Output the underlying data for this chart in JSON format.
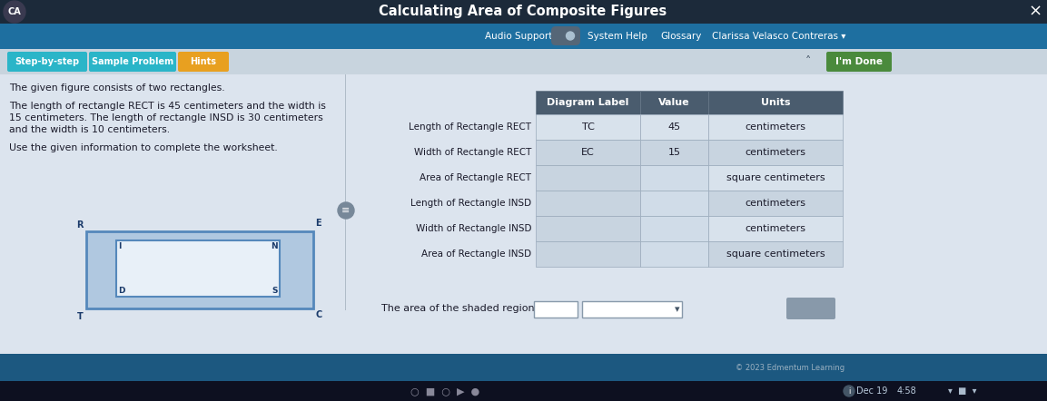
{
  "title": "Calculating Area of Composite Figures",
  "nav_items_right": [
    "Audio Support",
    "System Help",
    "Glossary",
    "Clarissa Velasco Contreras ▾"
  ],
  "tab_items": [
    "Step-by-step",
    "Sample Problem",
    "Hints"
  ],
  "tab_colors": [
    "#2ab5c8",
    "#2ab5c8",
    "#e8a020"
  ],
  "main_text_lines": [
    "The given figure consists of two rectangles.",
    "",
    "The length of rectangle RECT is 45 centimeters and the width is",
    "15 centimeters. The length of rectangle INSD is 30 centimeters",
    "and the width is 10 centimeters.",
    "",
    "Use the given information to complete the worksheet."
  ],
  "row_labels": [
    "Length of Rectangle RECT",
    "Width of Rectangle RECT",
    "Area of Rectangle RECT",
    "Length of Rectangle INSD",
    "Width of Rectangle INSD",
    "Area of Rectangle INSD"
  ],
  "col_headers": [
    "Diagram Label",
    "Value",
    "Units"
  ],
  "table_data": [
    [
      "TC",
      "45",
      "centimeters"
    ],
    [
      "EC",
      "15",
      "centimeters"
    ],
    [
      "",
      "",
      "square centimeters"
    ],
    [
      "",
      "",
      "centimeters"
    ],
    [
      "",
      "",
      "centimeters"
    ],
    [
      "",
      "",
      "square centimeters"
    ]
  ],
  "bottom_text": "The area of the shaded region is",
  "done_btn_text": "I'm Done",
  "circles_count": 5,
  "title_bar_color": "#1c2a3a",
  "nav_bar_color": "#1e6fa0",
  "progress_bar_color": "#c8d4de",
  "body_bg": "#dce4ee",
  "header_bg": "#4a5c6e",
  "row_bg_light": "#d8e2ec",
  "row_bg_dark": "#c8d4e0",
  "done_bg": "#4a8a3c",
  "footer_bg": "#1c5880",
  "taskbar_bg": "#0d1020"
}
